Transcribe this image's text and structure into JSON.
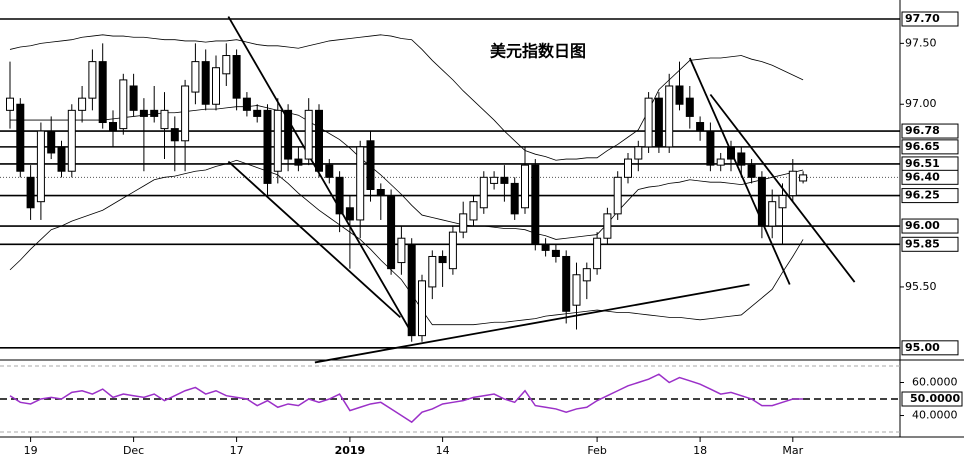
{
  "chart_data": {
    "type": "candlestick",
    "title": "美元指数日图",
    "categories": [
      null,
      null,
      "19",
      null,
      null,
      null,
      null,
      null,
      null,
      null,
      null,
      null,
      "Dec",
      null,
      null,
      null,
      null,
      null,
      null,
      null,
      null,
      null,
      "17",
      null,
      null,
      null,
      null,
      null,
      null,
      null,
      null,
      null,
      null,
      "2019",
      null,
      null,
      null,
      null,
      null,
      null,
      null,
      null,
      "14",
      null,
      null,
      null,
      null,
      null,
      null,
      null,
      null,
      null,
      null,
      null,
      null,
      null,
      null,
      "Feb",
      null,
      null,
      null,
      null,
      null,
      null,
      null,
      null,
      null,
      "18",
      null,
      null,
      null,
      null,
      null,
      null,
      null,
      null,
      "Mar",
      null
    ],
    "open": [
      96.95,
      97.0,
      96.4,
      96.2,
      96.78,
      96.65,
      96.45,
      96.95,
      97.05,
      97.35,
      96.85,
      96.8,
      97.15,
      96.95,
      96.95,
      96.8,
      96.8,
      96.7,
      97.1,
      97.35,
      97.0,
      97.25,
      97.4,
      97.05,
      96.95,
      96.95,
      96.45,
      96.95,
      96.55,
      96.55,
      96.95,
      96.5,
      96.4,
      96.15,
      96.05,
      96.7,
      96.3,
      96.25,
      95.7,
      95.85,
      95.1,
      95.5,
      95.75,
      95.65,
      95.95,
      96.05,
      96.15,
      96.35,
      96.4,
      96.35,
      96.15,
      96.5,
      95.85,
      95.8,
      95.75,
      95.35,
      95.55,
      95.65,
      95.9,
      96.1,
      96.4,
      96.55,
      96.65,
      97.05,
      96.65,
      97.15,
      97.05,
      96.85,
      96.78,
      96.5,
      96.65,
      96.6,
      96.5,
      96.4,
      96.0,
      96.15,
      96.25,
      96.37
    ],
    "high": [
      97.35,
      97.05,
      96.5,
      96.85,
      96.9,
      96.7,
      97.0,
      97.15,
      97.45,
      97.5,
      96.95,
      97.25,
      97.25,
      97.05,
      97.15,
      97.1,
      96.9,
      97.2,
      97.5,
      97.45,
      97.4,
      97.5,
      97.45,
      97.1,
      97.0,
      97.0,
      97.05,
      97.0,
      96.65,
      97.05,
      97.0,
      96.55,
      96.45,
      96.25,
      96.7,
      96.78,
      96.35,
      96.3,
      96.0,
      95.9,
      95.6,
      95.8,
      95.8,
      96.0,
      96.2,
      96.25,
      96.45,
      96.45,
      96.5,
      96.4,
      96.65,
      96.55,
      95.9,
      95.85,
      95.8,
      95.7,
      95.7,
      95.95,
      96.15,
      96.45,
      96.6,
      96.7,
      97.1,
      97.1,
      97.25,
      97.35,
      97.15,
      96.9,
      96.85,
      96.6,
      96.7,
      96.65,
      96.55,
      96.45,
      96.3,
      96.35,
      96.55,
      96.45
    ],
    "low": [
      96.8,
      96.4,
      96.05,
      96.05,
      96.55,
      96.4,
      96.4,
      96.85,
      96.95,
      96.8,
      96.65,
      96.75,
      96.9,
      96.45,
      96.85,
      96.55,
      96.45,
      96.45,
      97.0,
      96.95,
      96.95,
      97.15,
      96.95,
      96.9,
      96.85,
      96.25,
      96.35,
      96.45,
      96.45,
      96.5,
      96.4,
      96.35,
      95.95,
      95.65,
      95.9,
      96.2,
      96.05,
      95.6,
      95.6,
      95.05,
      95.05,
      95.4,
      95.5,
      95.6,
      95.9,
      96.0,
      96.1,
      96.3,
      96.2,
      96.05,
      96.1,
      95.8,
      95.75,
      95.7,
      95.2,
      95.15,
      95.4,
      95.6,
      95.85,
      96.05,
      96.35,
      96.45,
      96.6,
      96.6,
      96.6,
      96.95,
      96.8,
      96.7,
      96.45,
      96.45,
      96.45,
      96.4,
      96.35,
      95.9,
      95.9,
      95.85,
      96.2,
      96.35
    ],
    "close": [
      97.05,
      96.45,
      96.15,
      96.78,
      96.6,
      96.45,
      96.95,
      97.05,
      97.35,
      96.85,
      96.78,
      97.2,
      96.95,
      96.9,
      96.9,
      96.95,
      96.7,
      97.15,
      97.35,
      97.0,
      97.3,
      97.4,
      97.05,
      96.95,
      96.9,
      96.35,
      96.95,
      96.55,
      96.5,
      96.95,
      96.45,
      96.4,
      96.1,
      96.05,
      96.65,
      96.3,
      96.25,
      95.65,
      95.9,
      95.1,
      95.55,
      95.75,
      95.7,
      95.95,
      96.1,
      96.2,
      96.4,
      96.4,
      96.35,
      96.1,
      96.5,
      95.85,
      95.8,
      95.75,
      95.3,
      95.6,
      95.65,
      95.9,
      96.1,
      96.4,
      96.55,
      96.65,
      97.05,
      96.65,
      97.15,
      97.0,
      96.9,
      96.78,
      96.5,
      96.55,
      96.55,
      96.5,
      96.4,
      96.0,
      96.2,
      96.25,
      96.45,
      96.42
    ],
    "up_color": "#ffffff",
    "down_color": "#000000",
    "bands": [
      {
        "color": "#000000",
        "values": [
          97.45,
          97.47,
          97.48,
          97.5,
          97.51,
          97.52,
          97.53,
          97.55,
          97.56,
          97.57,
          97.56,
          97.56,
          97.55,
          97.55,
          97.54,
          97.53,
          97.53,
          97.52,
          97.52,
          97.51,
          97.52,
          97.52,
          97.53,
          97.51,
          97.49,
          97.48,
          97.48,
          97.47,
          97.46,
          97.48,
          97.5,
          97.52,
          97.53,
          97.54,
          97.55,
          97.56,
          97.57,
          97.56,
          97.54,
          97.53,
          97.45,
          97.36,
          97.28,
          97.2,
          97.11,
          97.03,
          96.95,
          96.87,
          96.78,
          96.7,
          96.62,
          96.59,
          96.57,
          96.54,
          96.55,
          96.55,
          96.56,
          96.56,
          96.62,
          96.67,
          96.73,
          96.79,
          96.95,
          97.12,
          97.2,
          97.28,
          97.36,
          97.37,
          97.38,
          97.38,
          97.39,
          97.4,
          97.37,
          97.35,
          97.32,
          97.28,
          97.24,
          97.2
        ]
      },
      {
        "color": "#000000",
        "values": [
          96.87,
          96.87,
          96.87,
          96.87,
          96.87,
          96.87,
          96.87,
          96.87,
          96.87,
          96.87,
          96.88,
          96.89,
          96.9,
          96.91,
          96.92,
          96.93,
          96.93,
          96.94,
          96.95,
          96.96,
          96.96,
          96.97,
          96.98,
          96.98,
          96.99,
          96.97,
          96.95,
          96.93,
          96.91,
          96.86,
          96.81,
          96.76,
          96.71,
          96.64,
          96.56,
          96.49,
          96.42,
          96.34,
          96.26,
          96.17,
          96.09,
          96.07,
          96.05,
          96.03,
          96.01,
          96.0,
          96.0,
          95.99,
          95.98,
          95.98,
          95.97,
          95.94,
          95.92,
          95.89,
          95.9,
          95.91,
          95.92,
          95.93,
          96.02,
          96.12,
          96.21,
          96.3,
          96.32,
          96.33,
          96.35,
          96.36,
          96.38,
          96.37,
          96.36,
          96.36,
          96.35,
          96.34,
          96.36,
          96.38,
          96.4,
          96.42,
          96.44,
          96.46
        ]
      },
      {
        "color": "#000000",
        "values": [
          95.64,
          95.72,
          95.81,
          95.89,
          95.97,
          96.0,
          96.04,
          96.07,
          96.1,
          96.13,
          96.18,
          96.23,
          96.28,
          96.33,
          96.38,
          96.4,
          96.41,
          96.43,
          96.45,
          96.46,
          96.49,
          96.51,
          96.54,
          96.51,
          96.48,
          96.45,
          96.42,
          96.35,
          96.27,
          96.2,
          96.13,
          96.07,
          96.01,
          95.95,
          95.89,
          95.81,
          95.72,
          95.64,
          95.56,
          95.44,
          95.31,
          95.19,
          95.19,
          95.19,
          95.19,
          95.19,
          95.2,
          95.21,
          95.21,
          95.22,
          95.23,
          95.24,
          95.26,
          95.27,
          95.28,
          95.29,
          95.3,
          95.31,
          95.3,
          95.29,
          95.29,
          95.28,
          95.27,
          95.26,
          95.25,
          95.25,
          95.24,
          95.23,
          95.24,
          95.25,
          95.26,
          95.27,
          95.34,
          95.41,
          95.48,
          95.62,
          95.75,
          95.89
        ]
      }
    ],
    "ylim": [
      94.9,
      97.856
    ],
    "yticks": [
      {
        "value": 95.5,
        "label": "95.50"
      },
      {
        "value": 97.0,
        "label": "97.00"
      },
      {
        "value": 97.5,
        "label": "97.50"
      }
    ],
    "levels": [
      {
        "value": 97.7,
        "label": "97.70"
      },
      {
        "value": 96.78,
        "label": "96.78"
      },
      {
        "value": 96.65,
        "label": "96.65"
      },
      {
        "value": 96.51,
        "label": "96.51"
      },
      {
        "value": 96.4,
        "label": "96.40",
        "line": "dotted"
      },
      {
        "value": 96.25,
        "label": "96.25"
      },
      {
        "value": 96.0,
        "label": "96.00"
      },
      {
        "value": 95.85,
        "label": "95.85"
      },
      {
        "value": 95.0,
        "label": "95.00"
      }
    ],
    "trend_lines": [
      {
        "x": [
          21.2,
          38.8
        ],
        "y": [
          97.72,
          95.15
        ]
      },
      {
        "x": [
          21.2,
          37.9
        ],
        "y": [
          96.53,
          95.25
        ]
      },
      {
        "x": [
          29.6,
          71.8
        ],
        "y": [
          94.88,
          95.52
        ]
      },
      {
        "x": [
          66.0,
          75.7
        ],
        "y": [
          97.38,
          95.52
        ]
      },
      {
        "x": [
          68.0,
          82.0
        ],
        "y": [
          97.08,
          95.54
        ]
      }
    ],
    "rsi": {
      "color": "#9b30c8",
      "values": [
        52,
        48,
        47,
        50,
        51,
        50,
        54,
        55,
        53,
        56,
        51,
        53,
        52,
        51,
        53,
        49,
        52,
        55,
        57,
        53,
        55,
        52,
        51,
        50,
        46,
        49,
        45,
        47,
        46,
        50,
        48,
        50,
        53,
        43,
        45,
        47,
        48,
        44,
        40,
        36,
        42,
        44,
        47,
        48,
        49,
        51,
        52,
        53,
        50,
        48,
        55,
        46,
        45,
        44,
        42,
        44,
        45,
        49,
        52,
        55,
        58,
        60,
        62,
        65,
        60,
        63,
        61,
        59,
        56,
        53,
        54,
        52,
        50,
        46,
        46,
        48,
        50,
        50
      ],
      "ylim": [
        27,
        71.8
      ],
      "yticks": [
        {
          "value": 60,
          "label": "60.0000"
        },
        {
          "value": 40,
          "label": "40.0000"
        }
      ],
      "reference": {
        "value": 50,
        "label": "50.0000"
      },
      "bounds": [
        70,
        30
      ]
    }
  }
}
